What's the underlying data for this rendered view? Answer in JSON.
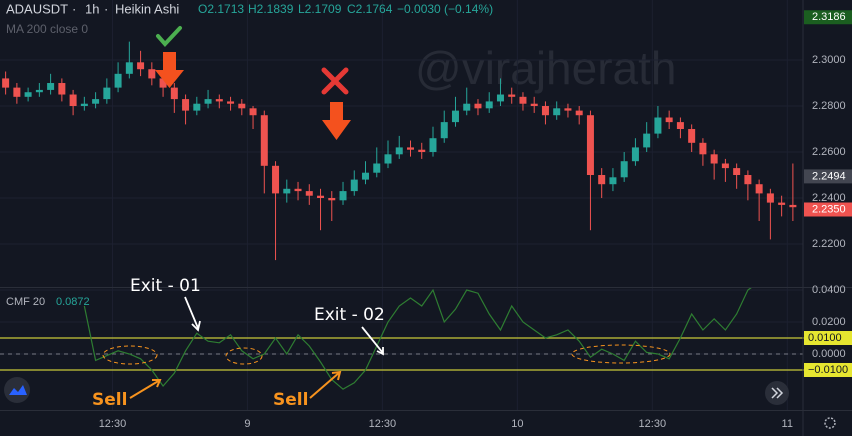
{
  "header": {
    "symbol": "ADAUSDT",
    "interval": "1h",
    "style": "Heikin Ashi",
    "open": "O2.1713",
    "high": "H2.1839",
    "low": "L2.1709",
    "close": "C2.1764",
    "change": "−0.0030 (−0.14%)",
    "ma": "MA 200 close 0"
  },
  "watermark": "@virajherath",
  "chart_data": {
    "type": "candlestick",
    "up_color": "#26a69a",
    "down_color": "#ef5350",
    "open": [
      2.292,
      2.288,
      2.284,
      2.286,
      2.287,
      2.29,
      2.285,
      2.28,
      2.281,
      2.283,
      2.288,
      2.294,
      2.299,
      2.296,
      2.292,
      2.288,
      2.283,
      2.278,
      2.281,
      2.283,
      2.282,
      2.281,
      2.279,
      2.276,
      2.254,
      2.242,
      2.244,
      2.243,
      2.241,
      2.24,
      2.239,
      2.243,
      2.248,
      2.251,
      2.255,
      2.259,
      2.262,
      2.261,
      2.26,
      2.266,
      2.273,
      2.278,
      2.281,
      2.279,
      2.282,
      2.285,
      2.284,
      2.281,
      2.28,
      2.276,
      2.279,
      2.278,
      2.276,
      2.25,
      2.246,
      2.249,
      2.256,
      2.262,
      2.268,
      2.275,
      2.273,
      2.27,
      2.264,
      2.259,
      2.255,
      2.253,
      2.25,
      2.246,
      2.242,
      2.238,
      2.237
    ],
    "high": [
      2.295,
      2.29,
      2.288,
      2.29,
      2.294,
      2.292,
      2.287,
      2.284,
      2.286,
      2.292,
      2.299,
      2.308,
      2.304,
      2.299,
      2.295,
      2.29,
      2.285,
      2.284,
      2.287,
      2.285,
      2.284,
      2.283,
      2.28,
      2.278,
      2.256,
      2.248,
      2.247,
      2.246,
      2.244,
      2.243,
      2.247,
      2.252,
      2.256,
      2.262,
      2.265,
      2.267,
      2.265,
      2.264,
      2.271,
      2.278,
      2.284,
      2.288,
      2.283,
      2.286,
      2.292,
      2.288,
      2.286,
      2.284,
      2.282,
      2.282,
      2.281,
      2.28,
      2.278,
      2.253,
      2.253,
      2.26,
      2.266,
      2.273,
      2.28,
      2.278,
      2.275,
      2.272,
      2.266,
      2.261,
      2.257,
      2.255,
      2.252,
      2.248,
      2.244,
      2.241,
      2.255
    ],
    "low": [
      2.285,
      2.281,
      2.282,
      2.284,
      2.285,
      2.282,
      2.276,
      2.278,
      2.279,
      2.281,
      2.286,
      2.292,
      2.293,
      2.289,
      2.284,
      2.277,
      2.272,
      2.276,
      2.279,
      2.279,
      2.278,
      2.276,
      2.27,
      2.242,
      2.213,
      2.238,
      2.239,
      2.237,
      2.226,
      2.23,
      2.237,
      2.241,
      2.246,
      2.249,
      2.253,
      2.257,
      2.258,
      2.257,
      2.258,
      2.264,
      2.271,
      2.276,
      2.276,
      2.277,
      2.28,
      2.281,
      2.278,
      2.277,
      2.272,
      2.274,
      2.275,
      2.272,
      2.226,
      2.24,
      2.243,
      2.247,
      2.254,
      2.26,
      2.266,
      2.27,
      2.266,
      2.26,
      2.254,
      2.248,
      2.247,
      2.244,
      2.239,
      2.23,
      2.222,
      2.232,
      2.23
    ],
    "close": [
      2.288,
      2.284,
      2.286,
      2.287,
      2.29,
      2.285,
      2.28,
      2.281,
      2.283,
      2.288,
      2.294,
      2.299,
      2.296,
      2.292,
      2.288,
      2.283,
      2.278,
      2.281,
      2.283,
      2.282,
      2.281,
      2.279,
      2.276,
      2.254,
      2.242,
      2.244,
      2.243,
      2.241,
      2.24,
      2.239,
      2.243,
      2.248,
      2.251,
      2.255,
      2.259,
      2.262,
      2.261,
      2.26,
      2.266,
      2.273,
      2.278,
      2.281,
      2.279,
      2.282,
      2.285,
      2.284,
      2.281,
      2.28,
      2.276,
      2.279,
      2.278,
      2.276,
      2.25,
      2.246,
      2.249,
      2.256,
      2.262,
      2.268,
      2.275,
      2.273,
      2.27,
      2.264,
      2.259,
      2.255,
      2.253,
      2.25,
      2.246,
      2.242,
      2.238,
      2.237,
      2.236
    ],
    "xlim": [
      -0.5,
      70.9
    ],
    "xticks": [
      {
        "value": 9.5,
        "label": "12:30"
      },
      {
        "value": 21.5,
        "label": "9"
      },
      {
        "value": 33.5,
        "label": "12:30"
      },
      {
        "value": 45.5,
        "label": "10"
      },
      {
        "value": 57.5,
        "label": "12:30"
      },
      {
        "value": 69.5,
        "label": "11"
      }
    ],
    "ylim": [
      2.2013,
      2.3261
    ],
    "yticks": [
      {
        "value": 2.3,
        "label": "2.3000"
      },
      {
        "value": 2.28,
        "label": "2.2800"
      },
      {
        "value": 2.26,
        "label": "2.2600"
      },
      {
        "value": 2.24,
        "label": "2.2400"
      },
      {
        "value": 2.22,
        "label": "2.2200"
      }
    ],
    "price_markers": [
      {
        "value": 2.3186,
        "label": "2.3186",
        "color": "#1b5e20"
      },
      {
        "value": 2.2494,
        "label": "2.2494",
        "color": "#434651"
      },
      {
        "value": 2.235,
        "label": "2.2350",
        "color": "#ef5350"
      }
    ],
    "indicator": {
      "name": "CMF 20",
      "current": "0.0872",
      "color": "#2e7d32",
      "values": [
        null,
        null,
        null,
        null,
        null,
        null,
        null,
        0.03,
        -0.004,
        -0.001,
        0.002,
        0.0,
        -0.003,
        -0.01,
        -0.02,
        -0.012,
        0.002,
        0.013,
        0.008,
        0.007,
        0.012,
        0.002,
        -0.003,
        0.0,
        0.01,
        0.0,
        0.012,
        0.005,
        -0.005,
        -0.016,
        -0.022,
        -0.018,
        -0.01,
        0.005,
        0.02,
        0.03,
        0.035,
        0.03,
        0.04,
        0.02,
        0.028,
        0.04,
        0.038,
        0.025,
        0.015,
        0.03,
        0.02,
        0.015,
        0.01,
        0.012,
        0.015,
        0.008,
        -0.002,
        0.003,
        0.0,
        -0.004,
        0.008,
        0.001,
        0.0,
        -0.003,
        0.01,
        0.025,
        0.015,
        0.022,
        0.015,
        0.025,
        0.04,
        0.045,
        0.05,
        null,
        null
      ],
      "y2lim": [
        -0.035,
        0.04125
      ],
      "y2ticks": [
        {
          "value": 0.04,
          "label": "0.0400"
        },
        {
          "value": 0.02,
          "label": "0.0200"
        },
        {
          "value": 0,
          "label": "0.0000"
        }
      ],
      "levels": [
        {
          "value": 0.01,
          "label": "0.0100"
        },
        {
          "value": -0.01,
          "label": "−0.0100"
        }
      ],
      "zero_line": 0
    },
    "annotations": [
      "Exit - 01",
      "Exit - 02",
      "Sell",
      "Sell"
    ]
  }
}
